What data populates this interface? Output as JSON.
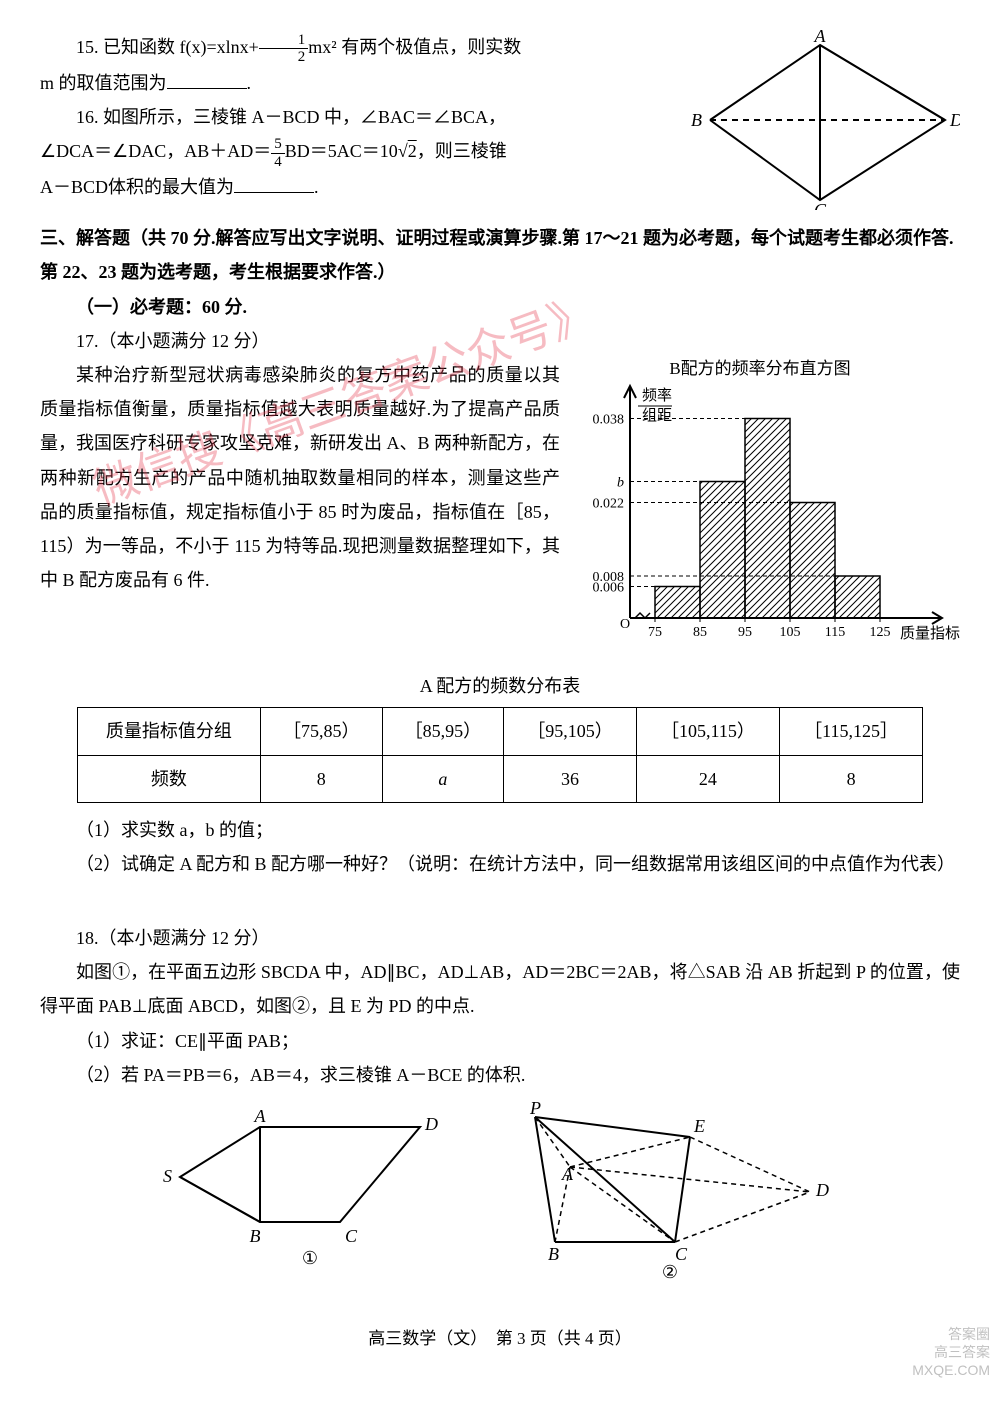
{
  "q15": {
    "text_a": "15. 已知函数 f(x)=xlnx+",
    "frac_n": "1",
    "frac_d": "2",
    "text_b": "mx² 有两个极值点，则实数",
    "text_c": "m 的取值范围为",
    "text_d": "."
  },
  "q16": {
    "l1a": "16. 如图所示，三棱锥 A－BCD 中，∠BAC＝∠BCA，",
    "l2a": "∠DCA＝∠DAC，AB＋AD＝",
    "l2b": "BD＝5AC＝10",
    "l2c": "，则三棱锥",
    "frac_n": "5",
    "frac_d": "4",
    "sqrt": "2",
    "l3": "A－BCD体积的最大值为",
    "l3b": "."
  },
  "tetra": {
    "A": "A",
    "B": "B",
    "C": "C",
    "D": "D",
    "stroke": "#000"
  },
  "sec3": {
    "head": "三、解答题（共 70 分.解答应写出文字说明、证明过程或演算步骤.第 17～21 题为必考题，每个试题考生都必须作答.第 22、23 题为选考题，考生根据要求作答.）",
    "sub": "（一）必考题：60 分."
  },
  "q17": {
    "pts": "17.（本小题满分 12 分）",
    "p1": "某种治疗新型冠状病毒感染肺炎的复方中药产品的质量以其质量指标值衡量，质量指标值越大表明质量越好.为了提高产品质量，我国医疗科研专家攻坚克难，新研发出 A、B 两种新配方，在两种新配方生产的产品中随机抽取数量相同的样本，测量这些产品的质量指标值，规定指标值小于 85 时为废品，指标值在［85，115）为一等品，不小于 115 为特等品.现把测量数据整理如下，其中 B 配方废品有 6 件.",
    "tabcap": "A 配方的频数分布表",
    "headers": [
      "质量指标值分组",
      "［75,85）",
      "［85,95）",
      "［95,105）",
      "［105,115）",
      "［115,125］"
    ],
    "rowlabel": "频数",
    "row": [
      "8",
      "a",
      "36",
      "24",
      "8"
    ],
    "sub1": "（1）求实数 a，b 的值；",
    "sub2": "（2）试确定 A 配方和 B 配方哪一种好？（说明：在统计方法中，同一组数据常用该组区间的中点值作为代表）"
  },
  "hist": {
    "title": "B配方的频率分布直方图",
    "ylabel1": "频率",
    "ylabel2": "组距",
    "xlabel": "质量指标值",
    "xticks": [
      "75",
      "85",
      "95",
      "105",
      "115",
      "125"
    ],
    "yticks": [
      "0.006",
      "0.008",
      "0.022",
      "b",
      "0.038"
    ],
    "bins": [
      {
        "x": 75,
        "h": 0.006
      },
      {
        "x": 85,
        "h": 0.026
      },
      {
        "x": 95,
        "h": 0.038
      },
      {
        "x": 105,
        "h": 0.022
      },
      {
        "x": 115,
        "h": 0.008
      }
    ],
    "bar_fill": "url(#hatch)",
    "axis_color": "#000"
  },
  "q18": {
    "pts": "18.（本小题满分 12 分）",
    "p1": "如图①，在平面五边形 SBCDA 中，AD∥BC，AD⊥AB，AD＝2BC＝2AB，将△SAB 沿 AB 折起到 P 的位置，使得平面 PAB⊥底面 ABCD，如图②，且 E 为 PD 的中点.",
    "sub1": "（1）求证：CE∥平面 PAB；",
    "sub2": "（2）若 PA＝PB＝6，AB＝4，求三棱锥 A－BCE 的体积."
  },
  "fig1": {
    "S": "S",
    "A": "A",
    "B": "B",
    "C": "C",
    "D": "D",
    "label": "①"
  },
  "fig2": {
    "P": "P",
    "A": "A",
    "B": "B",
    "C": "C",
    "D": "D",
    "E": "E",
    "label": "②"
  },
  "footer": "高三数学（文）　第 3 页（共 4 页）",
  "wm1": "微信搜《高三答案公众号》",
  "wm2": "高三答案",
  "wm3": "MXQE.COM",
  "wm_sq": "答案圈"
}
